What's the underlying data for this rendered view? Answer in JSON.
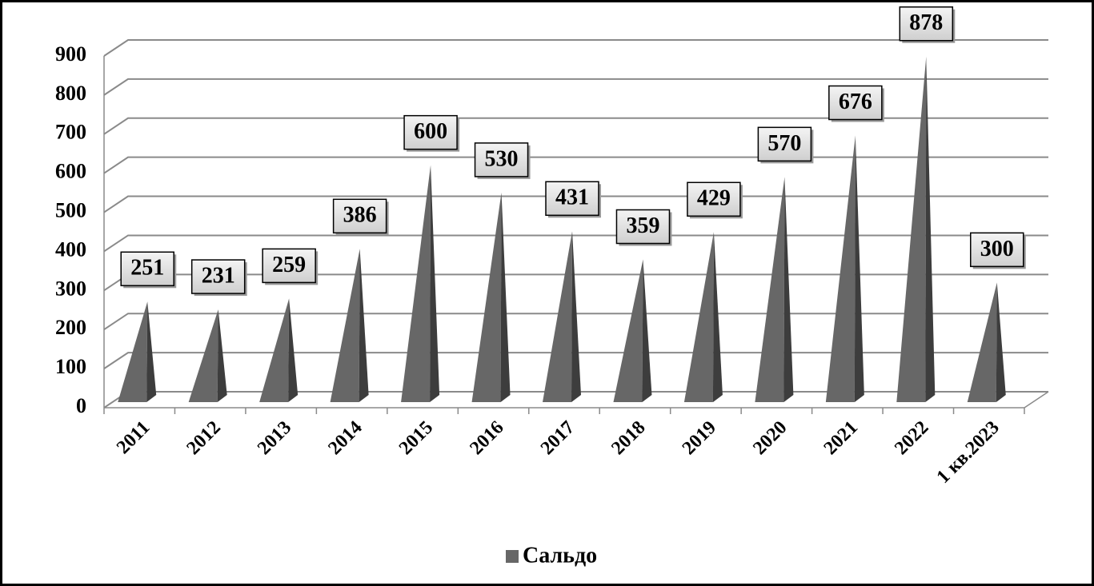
{
  "chart_data": {
    "type": "pyramid",
    "categories": [
      "2011",
      "2012",
      "2013",
      "2014",
      "2015",
      "2016",
      "2017",
      "2018",
      "2019",
      "2020",
      "2021",
      "2022",
      "1 кв.2023"
    ],
    "series": [
      {
        "name": "Сальдо",
        "color": "#676767",
        "values": [
          251,
          231,
          259,
          386,
          600,
          530,
          431,
          359,
          429,
          570,
          676,
          878,
          300
        ]
      }
    ],
    "ylim": [
      0,
      900
    ],
    "yticks": [
      0,
      100,
      200,
      300,
      400,
      500,
      600,
      700,
      800,
      900
    ],
    "grid": true,
    "legend": "bottom"
  }
}
